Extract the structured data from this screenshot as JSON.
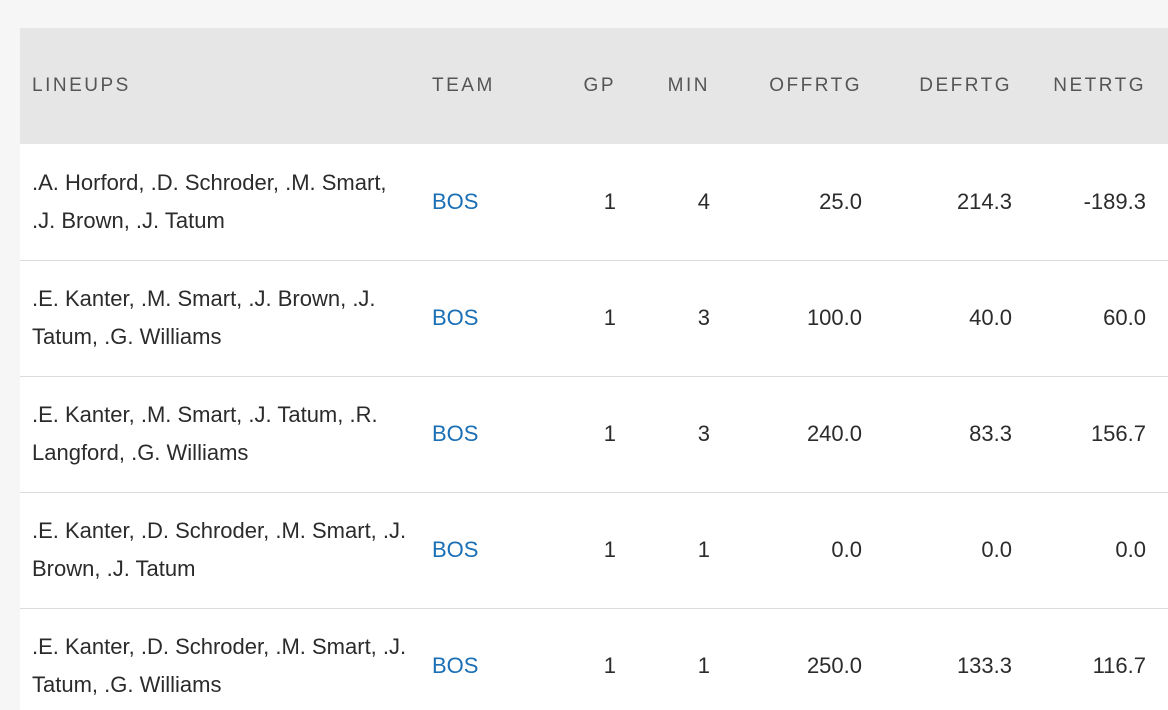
{
  "table": {
    "headers": {
      "lineups": "LINEUPS",
      "team": "TEAM",
      "gp": "GP",
      "min": "MIN",
      "offrtg": "OFFRTG",
      "defrtg": "DEFRTG",
      "netrtg": "NETRTG"
    },
    "rows": [
      {
        "lineup": ".A. Horford, .D. Schroder, .M. Smart, .J. Brown, .J. Tatum",
        "team": "BOS",
        "gp": "1",
        "min": "4",
        "offrtg": "25.0",
        "defrtg": "214.3",
        "netrtg": "-189.3"
      },
      {
        "lineup": ".E. Kanter, .M. Smart, .J. Brown, .J. Tatum, .G. Williams",
        "team": "BOS",
        "gp": "1",
        "min": "3",
        "offrtg": "100.0",
        "defrtg": "40.0",
        "netrtg": "60.0"
      },
      {
        "lineup": ".E. Kanter, .M. Smart, .J. Tatum, .R. Langford, .G. Williams",
        "team": "BOS",
        "gp": "1",
        "min": "3",
        "offrtg": "240.0",
        "defrtg": "83.3",
        "netrtg": "156.7"
      },
      {
        "lineup": ".E. Kanter, .D. Schroder, .M. Smart, .J. Brown, .J. Tatum",
        "team": "BOS",
        "gp": "1",
        "min": "1",
        "offrtg": "0.0",
        "defrtg": "0.0",
        "netrtg": "0.0"
      },
      {
        "lineup": ".E. Kanter, .D. Schroder, .M. Smart, .J. Tatum, .G. Williams",
        "team": "BOS",
        "gp": "1",
        "min": "1",
        "offrtg": "250.0",
        "defrtg": "133.3",
        "netrtg": "116.7"
      }
    ]
  }
}
